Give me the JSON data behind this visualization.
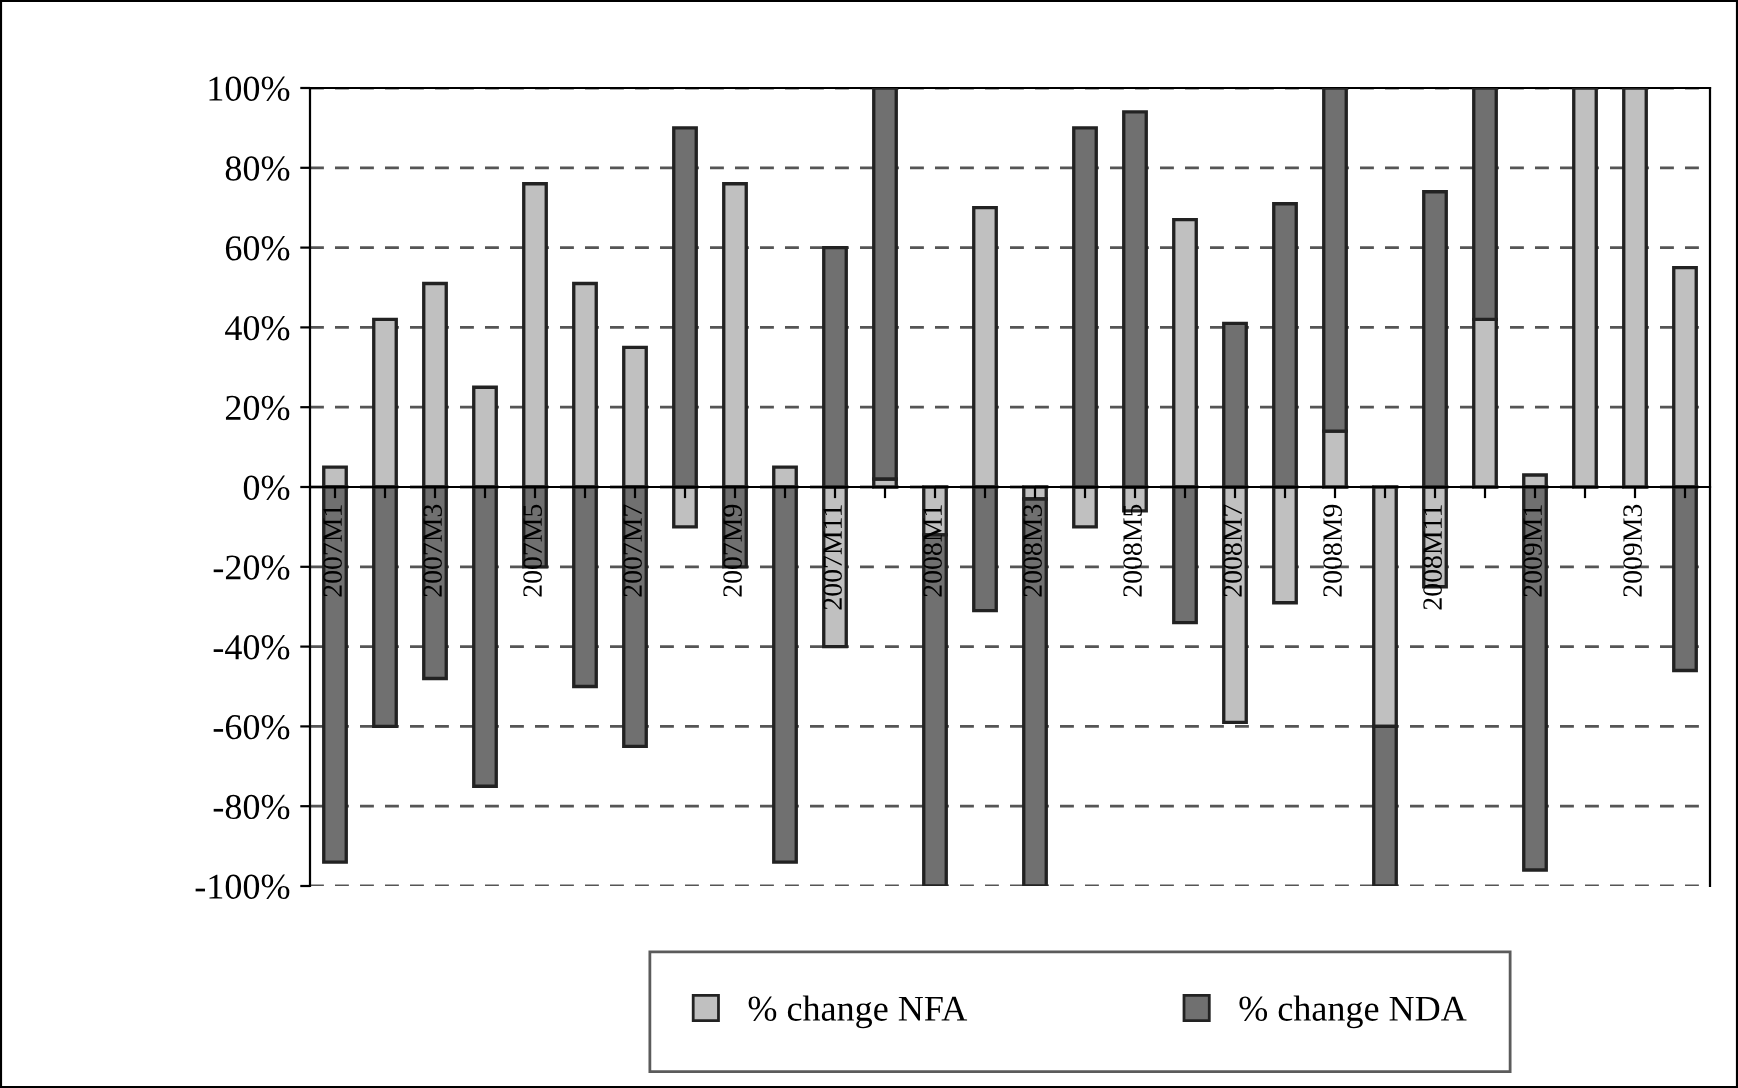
{
  "chart_data": {
    "type": "bar",
    "stacked": true,
    "categories": [
      "2007M1",
      null,
      "2007M3",
      null,
      "2007M5",
      null,
      "2007M7",
      null,
      "2007M9",
      null,
      "2007M11",
      null,
      "2008M1",
      null,
      "2008M3",
      null,
      "2008M5",
      null,
      "2008M7",
      null,
      "2008M9",
      null,
      "2008M11",
      null,
      "2009M1",
      null,
      "2009M3",
      null
    ],
    "series": [
      {
        "name": "% change NFA",
        "color": "#c0c0c0",
        "values": [
          5,
          42,
          51,
          25,
          76,
          51,
          35,
          -10,
          76,
          5,
          -40,
          2,
          -12,
          70,
          -3,
          -10,
          -6,
          67,
          -59,
          -29,
          14,
          -60,
          -25,
          42,
          3,
          100,
          100,
          55
        ]
      },
      {
        "name": "% change NDA",
        "color": "#707070",
        "values": [
          -94,
          -60,
          -48,
          -75,
          -20,
          -50,
          -65,
          90,
          -20,
          -94,
          60,
          98,
          -88,
          -31,
          -97,
          90,
          94,
          -34,
          41,
          71,
          86,
          -40,
          74,
          58,
          -96,
          null,
          null,
          -46
        ]
      }
    ],
    "ylim": [
      -100,
      100
    ],
    "yticks": [
      {
        "value": -100,
        "label": "-100%"
      },
      {
        "value": -80,
        "label": "-80%"
      },
      {
        "value": -60,
        "label": "-60%"
      },
      {
        "value": -40,
        "label": "-40%"
      },
      {
        "value": -20,
        "label": "-20%"
      },
      {
        "value": 0,
        "label": "0%"
      },
      {
        "value": 20,
        "label": "20%"
      },
      {
        "value": 40,
        "label": "40%"
      },
      {
        "value": 60,
        "label": "60%"
      },
      {
        "value": 80,
        "label": "80%"
      },
      {
        "value": 100,
        "label": "100%"
      }
    ],
    "grid": "y",
    "legend": "bottom"
  }
}
